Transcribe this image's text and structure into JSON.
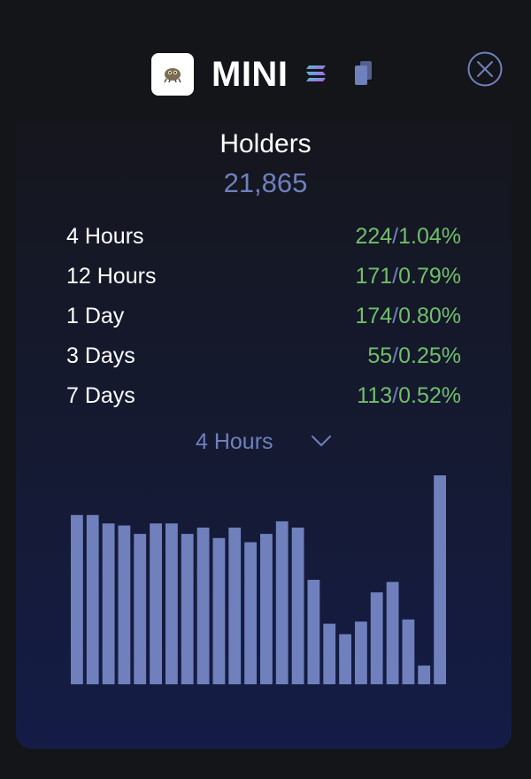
{
  "header": {
    "token_name": "MINI",
    "logo_icon": "mini-token-logo-icon",
    "chain_icon": "solana-icon",
    "copy_icon": "copy-icon",
    "close_icon": "close-circle-icon"
  },
  "holders": {
    "title": "Holders",
    "count": "21,865"
  },
  "stats": [
    {
      "period": "4 Hours",
      "count": "224",
      "sep": "/",
      "percent": "1.04%"
    },
    {
      "period": "12 Hours",
      "count": "171",
      "sep": "/",
      "percent": "0.79%"
    },
    {
      "period": "1 Day",
      "count": "174",
      "sep": "/",
      "percent": "0.80%"
    },
    {
      "period": "3 Days",
      "count": "55",
      "sep": "/",
      "percent": "0.25%"
    },
    {
      "period": "7 Days",
      "count": "113",
      "sep": "/",
      "percent": "0.52%"
    }
  ],
  "period_select": {
    "value": "4 Hours"
  },
  "colors": {
    "accent": "#6f80bd",
    "positive": "#6fbf6a",
    "bar": "#6f80bd",
    "background": "#141519"
  },
  "chart_data": {
    "type": "bar",
    "values": [
      81,
      81,
      77,
      76,
      72,
      77,
      77,
      72,
      75,
      70,
      75,
      68,
      72,
      78,
      75,
      50,
      29,
      24,
      30,
      44,
      49,
      31,
      9,
      100
    ],
    "ylim": [
      0,
      100
    ],
    "grid": false,
    "legend": "none"
  }
}
